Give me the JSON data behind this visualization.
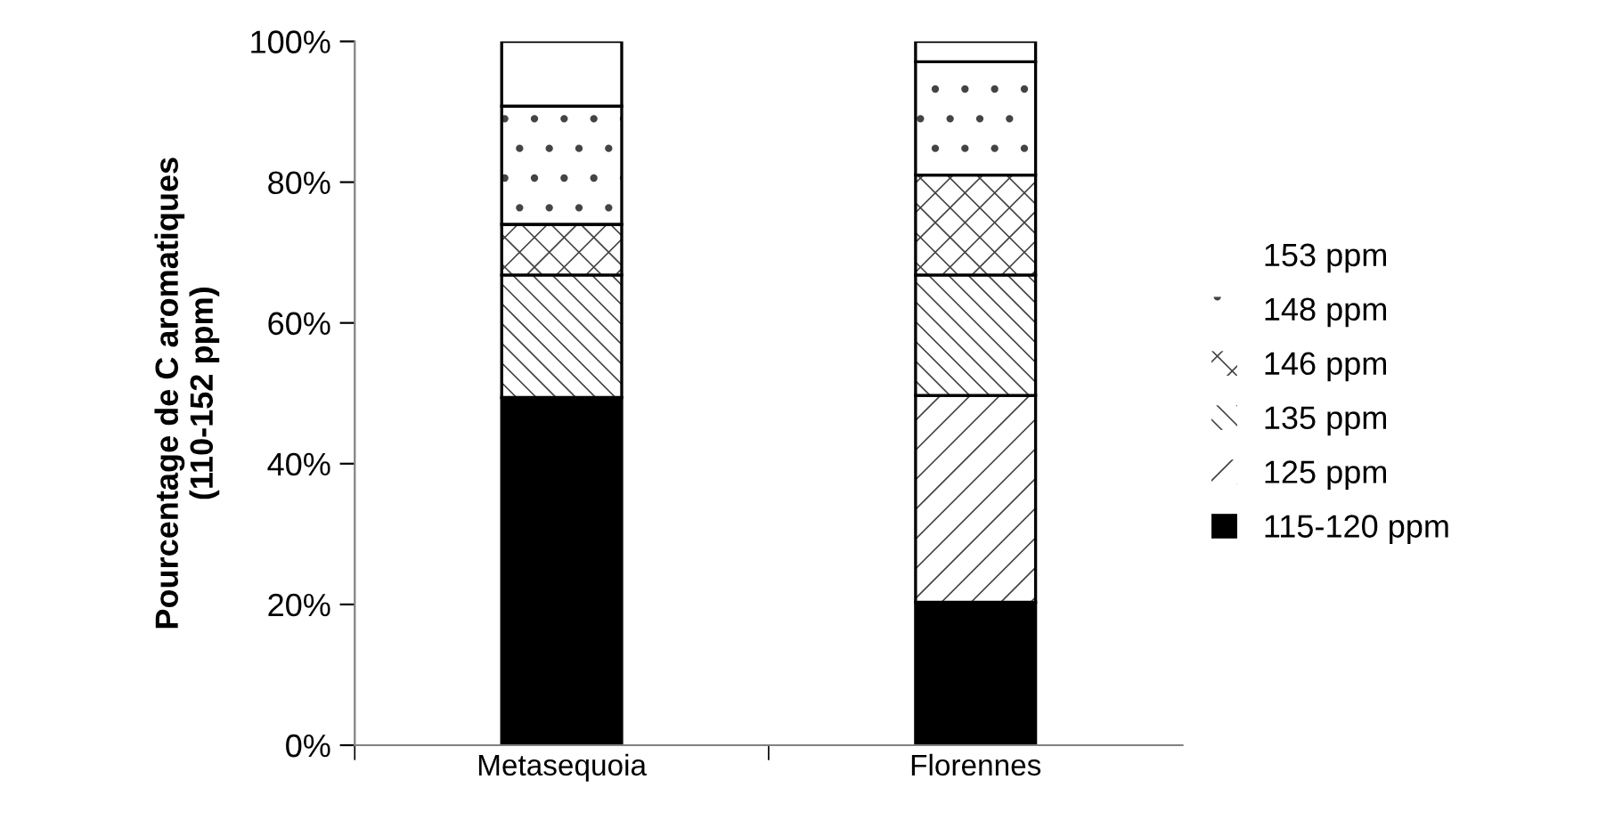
{
  "chart_data": {
    "type": "bar",
    "stacked": true,
    "ylabel": "Pourcentage de C aromatiques\n(110-152 ppm)",
    "categories": [
      "Metasequoia",
      "Florennes"
    ],
    "series": [
      {
        "name": "115-120 ppm",
        "color": "#000000",
        "values": [
          49.4,
          20.3
        ]
      },
      {
        "name": "125 ppm",
        "color": "#ffffff",
        "values": [
          null,
          29.4
        ]
      },
      {
        "name": "135 ppm",
        "color": "#ffffff",
        "values": [
          17.4,
          17.1
        ]
      },
      {
        "name": "146 ppm",
        "color": "#ffffff",
        "values": [
          7.2,
          14.2
        ]
      },
      {
        "name": "148 ppm",
        "color": "#ffffff",
        "values": [
          16.8,
          16.1
        ]
      },
      {
        "name": "153 ppm",
        "color": "#ffffff",
        "values": [
          9.2,
          2.9
        ]
      }
    ],
    "ylim": [
      0,
      100
    ],
    "yticks": [
      {
        "value": 0,
        "label": "0%"
      },
      {
        "value": 20,
        "label": "20%"
      },
      {
        "value": 40,
        "label": "40%"
      },
      {
        "value": 60,
        "label": "60%"
      },
      {
        "value": 80,
        "label": "80%"
      },
      {
        "value": 100,
        "label": "100%"
      }
    ],
    "grid": false,
    "legend": "right"
  }
}
